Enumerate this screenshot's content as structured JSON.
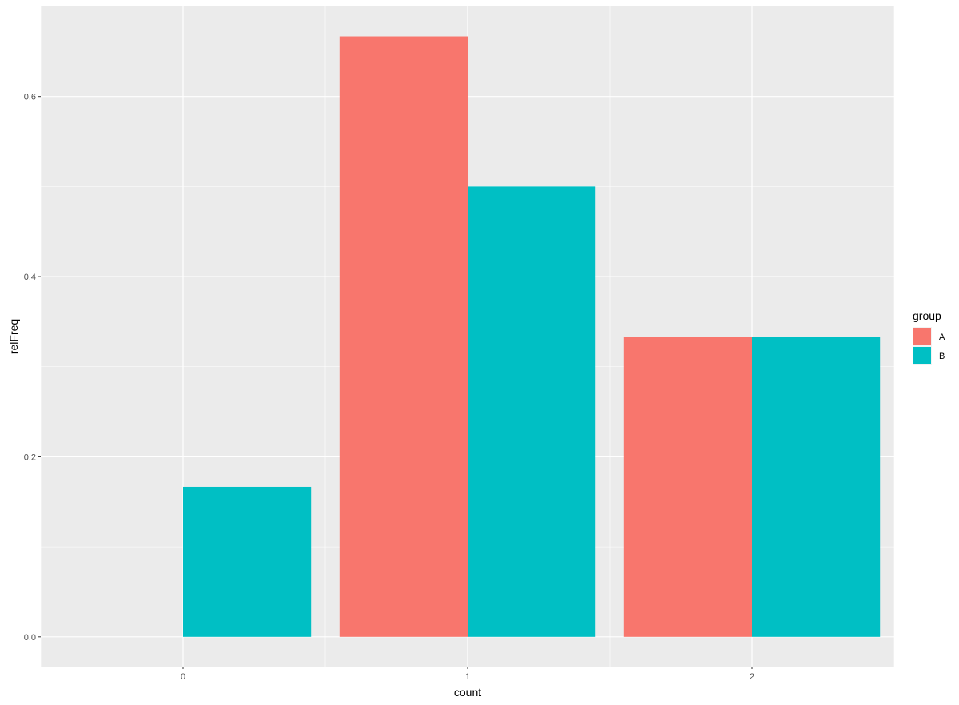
{
  "chart_data": {
    "type": "bar",
    "position": "dodge",
    "xlabel": "count",
    "ylabel": "relFreq",
    "x_ticks": [
      "0",
      "1",
      "2"
    ],
    "y_ticks": [
      "0.0",
      "0.2",
      "0.4",
      "0.6"
    ],
    "ylim": [
      -0.033,
      0.7
    ],
    "grid": true,
    "legend": {
      "title": "group",
      "position": "right"
    },
    "series": [
      {
        "name": "A",
        "color": "#F8766D",
        "points": [
          {
            "x": 1,
            "y": 0.6667
          },
          {
            "x": 2,
            "y": 0.3333
          }
        ]
      },
      {
        "name": "B",
        "color": "#00BFC4",
        "points": [
          {
            "x": 0,
            "y": 0.1667
          },
          {
            "x": 1,
            "y": 0.5
          },
          {
            "x": 2,
            "y": 0.3333
          }
        ]
      }
    ]
  }
}
